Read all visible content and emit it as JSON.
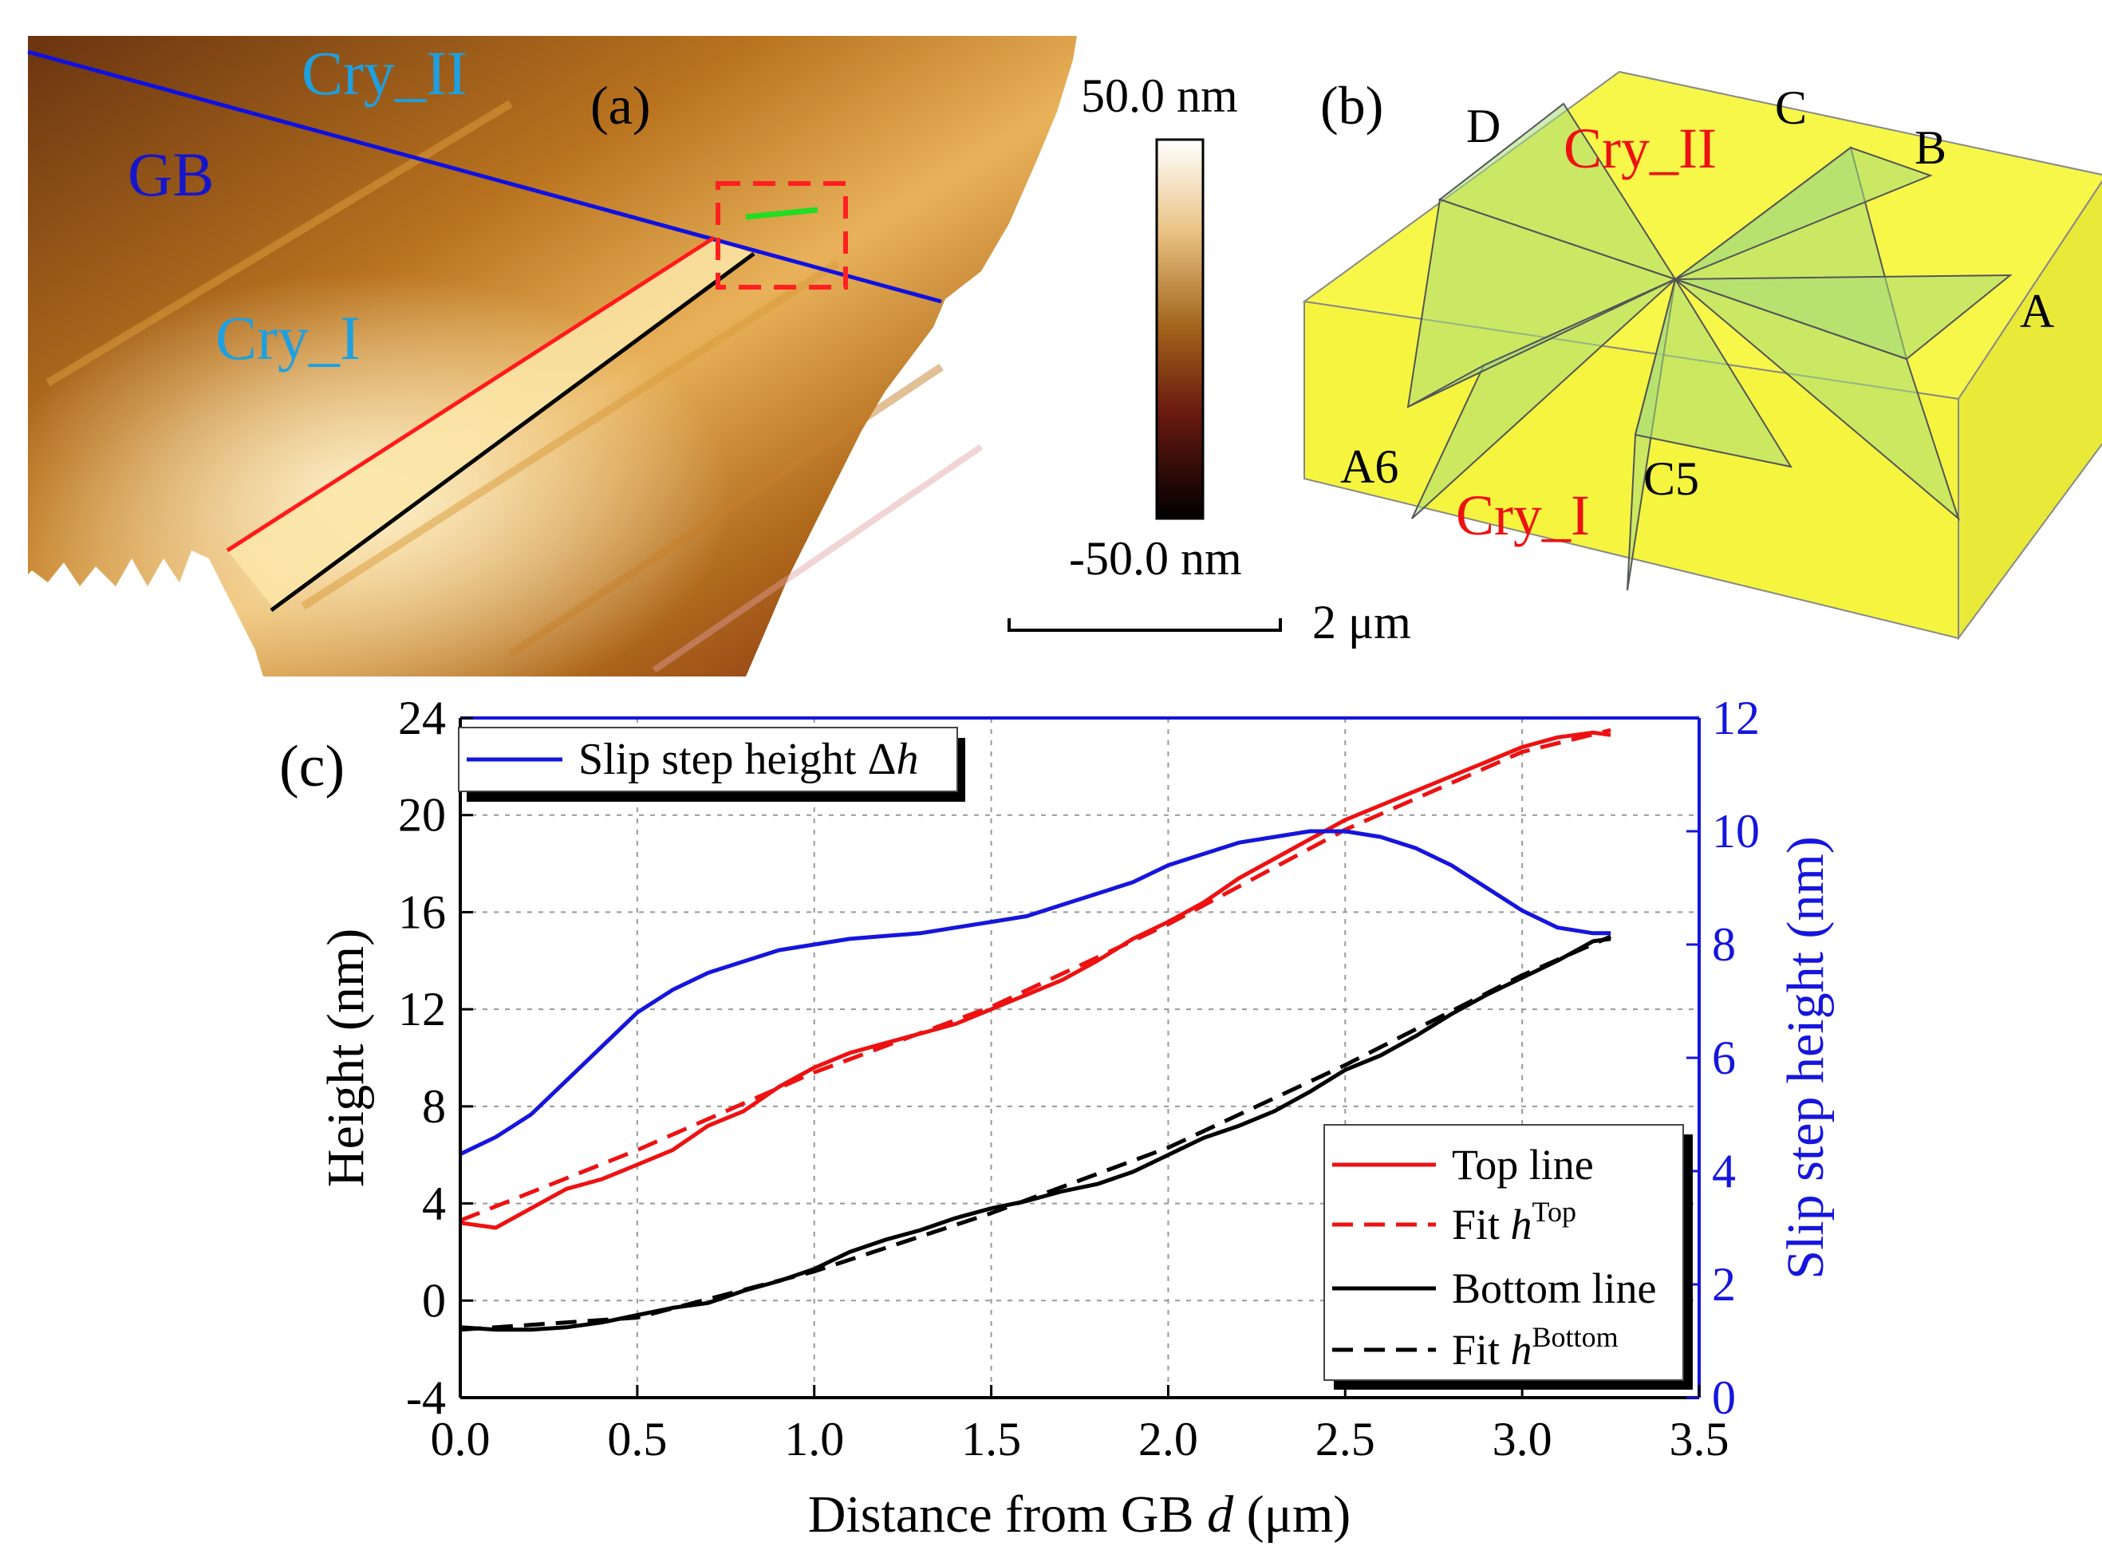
{
  "panel_a": {
    "label": "(a)",
    "labels": {
      "cry_ii": "Cry_II",
      "gb": "GB",
      "cry_i": "Cry_I"
    },
    "colorbar": {
      "max": "50.0 nm",
      "min": "-50.0 nm"
    },
    "scalebar": "2 μm",
    "colors": {
      "gb_line": "#1010e0",
      "top_line": "#ff1a1a",
      "bottom_line": "#000000",
      "green_mark": "#22dd22",
      "box": "#ff2020",
      "text": "#1ea0e0"
    }
  },
  "panel_b": {
    "label": "(b)",
    "labels": {
      "cry_ii": "Cry_II",
      "cry_i": "Cry_I",
      "a": "A",
      "b": "B",
      "c": "C",
      "d": "D",
      "a6": "A6",
      "c5": "C5"
    },
    "colors": {
      "box": "#f7f74a",
      "plane": "#a8dc7a",
      "text_red": "#ee1111"
    }
  },
  "panel_c": {
    "label": "(c)",
    "x_ticks": [
      "0.0",
      "0.5",
      "1.0",
      "1.5",
      "2.0",
      "2.5",
      "3.0",
      "3.5"
    ],
    "y_left_ticks": [
      "-4",
      "0",
      "4",
      "8",
      "12",
      "16",
      "20",
      "24"
    ],
    "y_right_ticks": [
      "0",
      "2",
      "4",
      "6",
      "8",
      "10",
      "12"
    ],
    "xlabel": {
      "pre": "Distance from GB ",
      "var": "d",
      "post": " (μm)"
    },
    "ylabel_left": "Height (nm)",
    "ylabel_right": "Slip step height (nm)",
    "legend_top": {
      "text": "Slip step height Δ",
      "var": "h"
    },
    "legend_bottom": {
      "top_line": "Top line",
      "fit_top": {
        "pre": "Fit ",
        "var": "h",
        "sup": "Top"
      },
      "bottom_line": "Bottom line",
      "fit_bottom": {
        "pre": "Fit ",
        "var": "h",
        "sup": "Bottom"
      }
    },
    "colors": {
      "top": "#ee1111",
      "bottom": "#000000",
      "step": "#1515dd",
      "right_axis": "#1515dd"
    }
  },
  "chart_data": {
    "type": "line",
    "xlabel": "Distance from GB d (μm)",
    "ylabel": "Height (nm)",
    "y2label": "Slip step height (nm)",
    "xlim": [
      0,
      3.5
    ],
    "ylim": [
      -4,
      24
    ],
    "y2lim": [
      0,
      12
    ],
    "grid": true,
    "legend": [
      "Slip step height Δh",
      "Top line",
      "Fit h^Top",
      "Bottom line",
      "Fit h^Bottom"
    ],
    "series": [
      {
        "name": "Top line",
        "axis": "left",
        "style": "solid",
        "x": [
          0,
          0.1,
          0.2,
          0.3,
          0.4,
          0.5,
          0.6,
          0.7,
          0.8,
          0.9,
          1.0,
          1.1,
          1.2,
          1.3,
          1.4,
          1.5,
          1.6,
          1.7,
          1.8,
          1.9,
          2.0,
          2.1,
          2.2,
          2.3,
          2.4,
          2.5,
          2.6,
          2.7,
          2.8,
          2.9,
          3.0,
          3.1,
          3.2,
          3.25
        ],
        "y": [
          3.2,
          3.0,
          3.8,
          4.6,
          5.0,
          5.6,
          6.2,
          7.2,
          7.8,
          8.8,
          9.6,
          10.2,
          10.6,
          11.0,
          11.4,
          12.0,
          12.6,
          13.2,
          14.0,
          14.9,
          15.6,
          16.4,
          17.4,
          18.2,
          19.0,
          19.8,
          20.4,
          21.0,
          21.6,
          22.2,
          22.8,
          23.2,
          23.4,
          23.3
        ]
      },
      {
        "name": "Fit h^Top",
        "axis": "left",
        "style": "dashed",
        "x": [
          0,
          0.5,
          1.0,
          1.5,
          2.0,
          2.5,
          3.0,
          3.25
        ],
        "y": [
          3.3,
          6.2,
          9.4,
          12.1,
          15.5,
          19.4,
          22.6,
          23.5
        ]
      },
      {
        "name": "Bottom line",
        "axis": "left",
        "style": "solid",
        "x": [
          0,
          0.1,
          0.2,
          0.3,
          0.4,
          0.5,
          0.6,
          0.7,
          0.8,
          0.9,
          1.0,
          1.1,
          1.2,
          1.3,
          1.4,
          1.5,
          1.6,
          1.7,
          1.8,
          1.9,
          2.0,
          2.1,
          2.2,
          2.3,
          2.4,
          2.5,
          2.6,
          2.7,
          2.8,
          2.9,
          3.0,
          3.1,
          3.2,
          3.25
        ],
        "y": [
          -1.1,
          -1.2,
          -1.2,
          -1.1,
          -0.9,
          -0.6,
          -0.3,
          -0.1,
          0.4,
          0.8,
          1.3,
          2.0,
          2.5,
          2.9,
          3.4,
          3.8,
          4.1,
          4.5,
          4.8,
          5.3,
          6.0,
          6.7,
          7.2,
          7.8,
          8.6,
          9.5,
          10.1,
          10.9,
          11.8,
          12.6,
          13.3,
          14.0,
          14.8,
          14.9
        ]
      },
      {
        "name": "Fit h^Bottom",
        "axis": "left",
        "style": "dashed",
        "x": [
          0,
          0.5,
          1.0,
          1.5,
          2.0,
          2.5,
          3.0,
          3.25
        ],
        "y": [
          -1.2,
          -0.7,
          1.2,
          3.6,
          6.3,
          9.7,
          13.4,
          15.0
        ]
      },
      {
        "name": "Slip step height Δh",
        "axis": "right",
        "style": "solid",
        "x": [
          0,
          0.1,
          0.2,
          0.3,
          0.4,
          0.5,
          0.6,
          0.7,
          0.8,
          0.9,
          1.0,
          1.1,
          1.2,
          1.3,
          1.4,
          1.5,
          1.6,
          1.7,
          1.8,
          1.9,
          2.0,
          2.1,
          2.2,
          2.3,
          2.4,
          2.5,
          2.6,
          2.7,
          2.8,
          2.9,
          3.0,
          3.1,
          3.2,
          3.25
        ],
        "y": [
          4.3,
          4.6,
          5.0,
          5.6,
          6.2,
          6.8,
          7.2,
          7.5,
          7.7,
          7.9,
          8.0,
          8.1,
          8.15,
          8.2,
          8.3,
          8.4,
          8.5,
          8.7,
          8.9,
          9.1,
          9.4,
          9.6,
          9.8,
          9.9,
          10.0,
          10.0,
          9.9,
          9.7,
          9.4,
          9.0,
          8.6,
          8.3,
          8.2,
          8.2
        ]
      }
    ]
  }
}
